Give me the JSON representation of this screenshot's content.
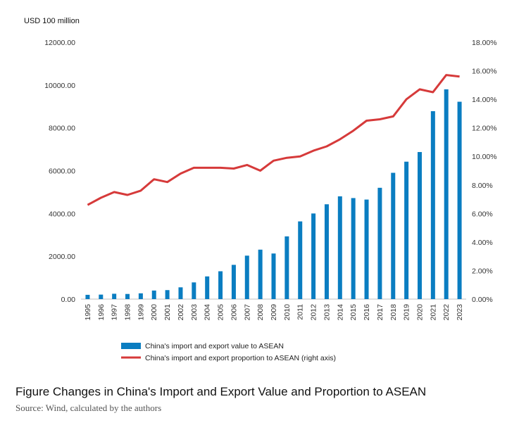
{
  "chart_data": {
    "type": "bar",
    "unit_label": "USD 100 million",
    "categories": [
      "1995",
      "1996",
      "1997",
      "1998",
      "1999",
      "2000",
      "2001",
      "2002",
      "2003",
      "2004",
      "2005",
      "2006",
      "2007",
      "2008",
      "2009",
      "2010",
      "2011",
      "2012",
      "2013",
      "2014",
      "2015",
      "2016",
      "2017",
      "2018",
      "2019",
      "2020",
      "2021",
      "2022",
      "2023"
    ],
    "series": [
      {
        "name": "China's import and export value to ASEAN",
        "type": "bar",
        "axis": "left",
        "color": "#0a7dc1",
        "values": [
          200,
          210,
          250,
          240,
          270,
          400,
          420,
          550,
          780,
          1060,
          1300,
          1600,
          2030,
          2310,
          2130,
          2930,
          3630,
          4000,
          4430,
          4800,
          4720,
          4650,
          5200,
          5900,
          6420,
          6870,
          8780,
          9800,
          9220
        ]
      },
      {
        "name": "China's import and export proportion to ASEAN (right axis)",
        "type": "line",
        "axis": "right",
        "color": "#d63a3a",
        "values": [
          6.6,
          7.1,
          7.5,
          7.3,
          7.6,
          8.4,
          8.2,
          8.8,
          9.2,
          9.2,
          9.2,
          9.15,
          9.4,
          9.0,
          9.7,
          9.9,
          10.0,
          10.4,
          10.7,
          11.2,
          11.8,
          12.5,
          12.6,
          12.8,
          14.0,
          14.7,
          14.5,
          15.7,
          15.6
        ]
      }
    ],
    "y_left": {
      "min": 0,
      "max": 12000,
      "ticks": [
        "0.00",
        "2000.00",
        "4000.00",
        "6000.00",
        "8000.00",
        "10000.00",
        "12000.00"
      ]
    },
    "y_right": {
      "min": 0,
      "max": 18,
      "ticks": [
        "0.00%",
        "2.00%",
        "4.00%",
        "6.00%",
        "8.00%",
        "10.00%",
        "12.00%",
        "14.00%",
        "16.00%",
        "18.00%"
      ]
    },
    "legend_position": "bottom-center",
    "grid": false
  },
  "caption": "Figure  Changes in China's Import and Export Value and Proportion to ASEAN",
  "source": "Source: Wind, calculated by the authors"
}
